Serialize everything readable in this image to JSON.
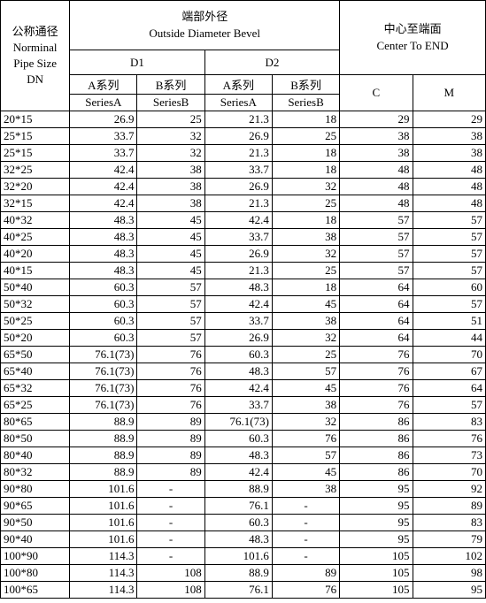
{
  "header": {
    "pipe_size_label_cn": "公称通径",
    "pipe_size_label_en1": "Norminal",
    "pipe_size_label_en2": "Pipe Size",
    "pipe_size_label_dn": "DN",
    "od_label_cn": "端部外径",
    "od_label_en": "Outside Diameter Bevel",
    "d1": "D1",
    "d2": "D2",
    "center_label_cn": "中心至端面",
    "center_label_en": "Center To END",
    "series_a_cn": "A系列",
    "series_b_cn": "B系列",
    "series_a_en": "SeriesA",
    "series_b_en": "SeriesB",
    "c": "C",
    "m": "M"
  },
  "rows": [
    {
      "dn": "20*15",
      "d1a": "26.9",
      "d1b": "25",
      "d2a": "21.3",
      "d2b": "18",
      "c": "29",
      "m": "29"
    },
    {
      "dn": "25*15",
      "d1a": "33.7",
      "d1b": "32",
      "d2a": "26.9",
      "d2b": "25",
      "c": "38",
      "m": "38"
    },
    {
      "dn": "25*15",
      "d1a": "33.7",
      "d1b": "32",
      "d2a": "21.3",
      "d2b": "18",
      "c": "38",
      "m": "38"
    },
    {
      "dn": "32*25",
      "d1a": "42.4",
      "d1b": "38",
      "d2a": "33.7",
      "d2b": "18",
      "c": "48",
      "m": "48"
    },
    {
      "dn": "32*20",
      "d1a": "42.4",
      "d1b": "38",
      "d2a": "26.9",
      "d2b": "32",
      "c": "48",
      "m": "48"
    },
    {
      "dn": "32*15",
      "d1a": "42.4",
      "d1b": "38",
      "d2a": "21.3",
      "d2b": "25",
      "c": "48",
      "m": "48"
    },
    {
      "dn": "40*32",
      "d1a": "48.3",
      "d1b": "45",
      "d2a": "42.4",
      "d2b": "18",
      "c": "57",
      "m": "57"
    },
    {
      "dn": "40*25",
      "d1a": "48.3",
      "d1b": "45",
      "d2a": "33.7",
      "d2b": "38",
      "c": "57",
      "m": "57"
    },
    {
      "dn": "40*20",
      "d1a": "48.3",
      "d1b": "45",
      "d2a": "26.9",
      "d2b": "32",
      "c": "57",
      "m": "57"
    },
    {
      "dn": "40*15",
      "d1a": "48.3",
      "d1b": "45",
      "d2a": "21.3",
      "d2b": "25",
      "c": "57",
      "m": "57"
    },
    {
      "dn": "50*40",
      "d1a": "60.3",
      "d1b": "57",
      "d2a": "48.3",
      "d2b": "18",
      "c": "64",
      "m": "60"
    },
    {
      "dn": "50*32",
      "d1a": "60.3",
      "d1b": "57",
      "d2a": "42.4",
      "d2b": "45",
      "c": "64",
      "m": "57"
    },
    {
      "dn": "50*25",
      "d1a": "60.3",
      "d1b": "57",
      "d2a": "33.7",
      "d2b": "38",
      "c": "64",
      "m": "51"
    },
    {
      "dn": "50*20",
      "d1a": "60.3",
      "d1b": "57",
      "d2a": "26.9",
      "d2b": "32",
      "c": "64",
      "m": "44"
    },
    {
      "dn": "65*50",
      "d1a": "76.1(73)",
      "d1b": "76",
      "d2a": "60.3",
      "d2b": "25",
      "c": "76",
      "m": "70"
    },
    {
      "dn": "65*40",
      "d1a": "76.1(73)",
      "d1b": "76",
      "d2a": "48.3",
      "d2b": "57",
      "c": "76",
      "m": "67"
    },
    {
      "dn": "65*32",
      "d1a": "76.1(73)",
      "d1b": "76",
      "d2a": "42.4",
      "d2b": "45",
      "c": "76",
      "m": "64"
    },
    {
      "dn": "65*25",
      "d1a": "76.1(73)",
      "d1b": "76",
      "d2a": "33.7",
      "d2b": "38",
      "c": "76",
      "m": "57"
    },
    {
      "dn": "80*65",
      "d1a": "88.9",
      "d1b": "89",
      "d2a": "76.1(73)",
      "d2b": "32",
      "c": "86",
      "m": "83"
    },
    {
      "dn": "80*50",
      "d1a": "88.9",
      "d1b": "89",
      "d2a": "60.3",
      "d2b": "76",
      "c": "86",
      "m": "76"
    },
    {
      "dn": "80*40",
      "d1a": "88.9",
      "d1b": "89",
      "d2a": "48.3",
      "d2b": "57",
      "c": "86",
      "m": "73"
    },
    {
      "dn": "80*32",
      "d1a": "88.9",
      "d1b": "89",
      "d2a": "42.4",
      "d2b": "45",
      "c": "86",
      "m": "70"
    },
    {
      "dn": "90*80",
      "d1a": "101.6",
      "d1b": "-",
      "d2a": "88.9",
      "d2b": "38",
      "c": "95",
      "m": "92"
    },
    {
      "dn": "90*65",
      "d1a": "101.6",
      "d1b": "-",
      "d2a": "76.1",
      "d2b": "-",
      "c": "95",
      "m": "89"
    },
    {
      "dn": "90*50",
      "d1a": "101.6",
      "d1b": "-",
      "d2a": "60.3",
      "d2b": "-",
      "c": "95",
      "m": "83"
    },
    {
      "dn": "90*40",
      "d1a": "101.6",
      "d1b": "-",
      "d2a": "48.3",
      "d2b": "-",
      "c": "95",
      "m": "79"
    },
    {
      "dn": "100*90",
      "d1a": "114.3",
      "d1b": "-",
      "d2a": "101.6",
      "d2b": "-",
      "c": "105",
      "m": "102"
    },
    {
      "dn": "100*80",
      "d1a": "114.3",
      "d1b": "108",
      "d2a": "88.9",
      "d2b": "89",
      "c": "105",
      "m": "98"
    },
    {
      "dn": "100*65",
      "d1a": "114.3",
      "d1b": "108",
      "d2a": "76.1",
      "d2b": "76",
      "c": "105",
      "m": "95"
    }
  ]
}
